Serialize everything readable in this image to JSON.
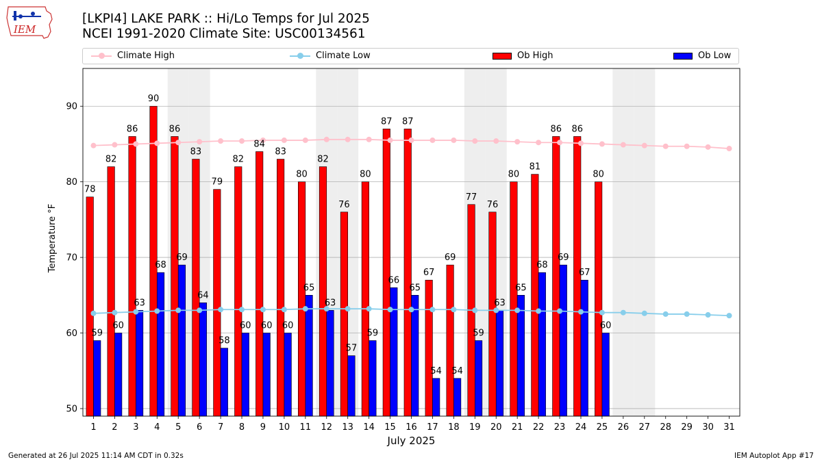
{
  "logo": {
    "text": "IEM"
  },
  "title": {
    "line1": "[LKPI4] LAKE PARK :: Hi/Lo Temps for Jul 2025",
    "line2": "NCEI 1991-2020 Climate Site: USC00134561"
  },
  "footer": {
    "left": "Generated at 26 Jul 2025 11:14 AM CDT in 0.32s",
    "right": "IEM Autoplot App #17"
  },
  "colors": {
    "ob_high": "#ff0000",
    "ob_low": "#0000ff",
    "climate_high": "#ffc0cb",
    "climate_low": "#87ceeb",
    "weekend_shade": "#eeeeee"
  },
  "chart_data": {
    "type": "bar",
    "xlabel": "July 2025",
    "ylabel": "Temperature °F",
    "ylim": [
      49,
      95
    ],
    "yticks": [
      50,
      60,
      70,
      80,
      90
    ],
    "grid": true,
    "legend_position": "top",
    "categories": [
      1,
      2,
      3,
      4,
      5,
      6,
      7,
      8,
      9,
      10,
      11,
      12,
      13,
      14,
      15,
      16,
      17,
      18,
      19,
      20,
      21,
      22,
      23,
      24,
      25,
      26,
      27,
      28,
      29,
      30,
      31
    ],
    "shaded_days": [
      5,
      6,
      12,
      13,
      19,
      20,
      26,
      27
    ],
    "series": [
      {
        "name": "Climate High",
        "kind": "line",
        "values": [
          84.8,
          84.9,
          85.0,
          85.1,
          85.2,
          85.3,
          85.4,
          85.4,
          85.5,
          85.5,
          85.5,
          85.6,
          85.6,
          85.6,
          85.5,
          85.5,
          85.5,
          85.5,
          85.4,
          85.4,
          85.3,
          85.2,
          85.2,
          85.1,
          85.0,
          84.9,
          84.8,
          84.7,
          84.7,
          84.6,
          84.4
        ]
      },
      {
        "name": "Climate Low",
        "kind": "line",
        "values": [
          62.6,
          62.7,
          62.8,
          62.9,
          63.0,
          63.0,
          63.1,
          63.1,
          63.1,
          63.1,
          63.2,
          63.2,
          63.2,
          63.2,
          63.1,
          63.1,
          63.1,
          63.1,
          63.0,
          63.0,
          63.0,
          62.9,
          62.9,
          62.8,
          62.7,
          62.7,
          62.6,
          62.5,
          62.5,
          62.4,
          62.3
        ]
      },
      {
        "name": "Ob High",
        "kind": "bar",
        "values": [
          78,
          82,
          86,
          90,
          86,
          83,
          79,
          82,
          84,
          83,
          80,
          82,
          76,
          80,
          87,
          87,
          67,
          69,
          77,
          76,
          80,
          81,
          86,
          86,
          80,
          null,
          null,
          null,
          null,
          null,
          null
        ]
      },
      {
        "name": "Ob Low",
        "kind": "bar",
        "values": [
          59,
          60,
          63,
          68,
          69,
          64,
          58,
          60,
          60,
          60,
          65,
          63,
          57,
          59,
          66,
          65,
          54,
          54,
          59,
          63,
          65,
          68,
          69,
          67,
          60,
          null,
          null,
          null,
          null,
          null,
          null
        ]
      }
    ]
  }
}
